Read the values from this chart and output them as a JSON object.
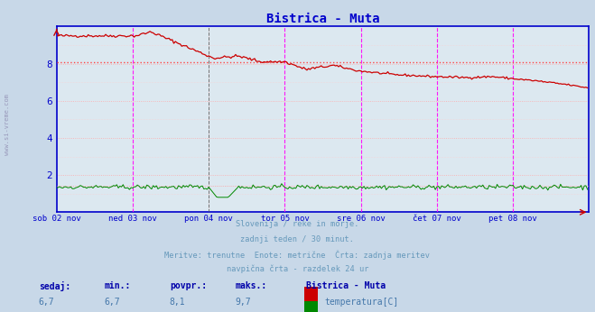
{
  "title": "Bistrica - Muta",
  "title_color": "#0000cc",
  "bg_color": "#c8d8e8",
  "plot_bg_color": "#dce8f0",
  "grid_color_h": "#ffaaaa",
  "grid_color_v": "#ffcccc",
  "axis_color": "#0000cc",
  "tick_color": "#0000cc",
  "watermark_text": "www.si-vreme.com",
  "watermark_color": "#aaaaaa",
  "ylabel_text": "www.si-vreme.com",
  "x_tick_labels": [
    "sob 02 nov",
    "ned 03 nov",
    "pon 04 nov",
    "tor 05 nov",
    "sre 06 nov",
    "čet 07 nov",
    "pet 08 nov"
  ],
  "x_tick_positions": [
    0,
    48,
    96,
    144,
    192,
    240,
    288
  ],
  "ylim": [
    0,
    10
  ],
  "yticks": [
    2,
    4,
    6,
    8
  ],
  "xlim": [
    0,
    336
  ],
  "temp_avg": 8.1,
  "flow_avg": 1.4,
  "temp_color": "#cc0000",
  "flow_color": "#008800",
  "avg_temp_line_color": "#ff6666",
  "avg_flow_line_color": "#ff6666",
  "vline_magenta_color": "#ff00ff",
  "vline_black_color": "#555555",
  "border_color": "#0000cc",
  "subtitle_lines": [
    "Slovenija / reke in morje.",
    "zadnji teden / 30 minut.",
    "Meritve: trenutne  Enote: metrične  Črta: zadnja meritev",
    "navpična črta - razdelek 24 ur"
  ],
  "subtitle_color": "#6699bb",
  "table_header_color": "#0000aa",
  "table_data_color": "#4477aa",
  "legend_temp_color": "#cc0000",
  "legend_flow_color": "#008800",
  "n_points": 336
}
